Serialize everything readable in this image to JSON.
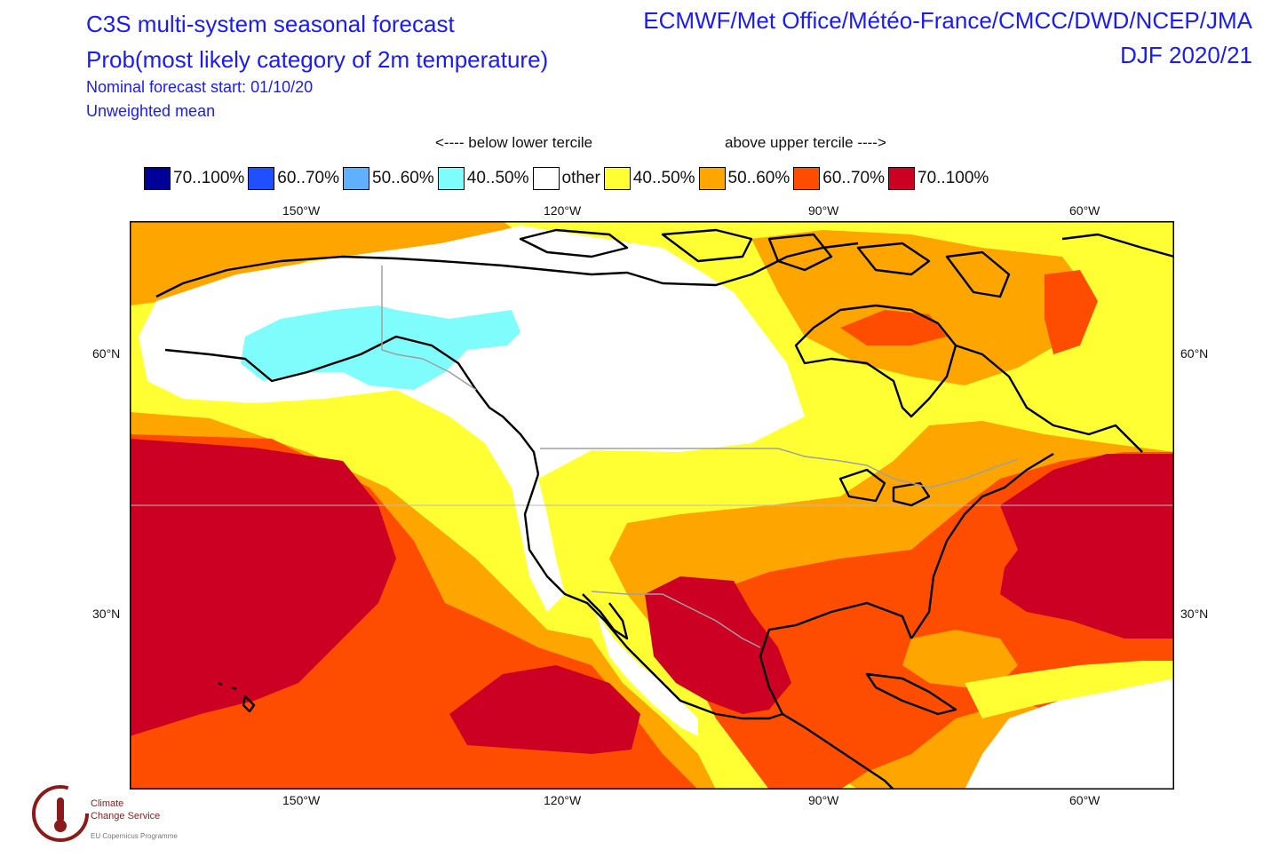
{
  "header": {
    "title_line1": "C3S multi-system seasonal forecast",
    "title_line2": "Prob(most likely category of 2m temperature)",
    "forecast_start": "Nominal forecast start: 01/10/20",
    "mean_type": "Unweighted mean",
    "systems": "ECMWF/Met Office/Météo-France/CMCC/DWD/NCEP/JMA",
    "season": "DJF 2020/21"
  },
  "legend": {
    "below_label": "<---- below lower tercile",
    "above_label": "above upper tercile ---->",
    "items": [
      {
        "label": "70..100%",
        "color": "#000099"
      },
      {
        "label": "60..70%",
        "color": "#1f4fff"
      },
      {
        "label": "50..60%",
        "color": "#5fb0ff"
      },
      {
        "label": "40..50%",
        "color": "#7ffcfc"
      },
      {
        "label": "other",
        "color": "#ffffff"
      },
      {
        "label": "40..50%",
        "color": "#ffff33"
      },
      {
        "label": "50..60%",
        "color": "#ffa500"
      },
      {
        "label": "60..70%",
        "color": "#ff4d00"
      },
      {
        "label": "70..100%",
        "color": "#cc0022"
      }
    ]
  },
  "axes": {
    "lon_labels": [
      "150°W",
      "120°W",
      "90°W",
      "60°W"
    ],
    "lat_labels": [
      "60°N",
      "30°N"
    ]
  },
  "logo": {
    "line1": "Climate",
    "line2": "Change Service",
    "line3": "EU Copernicus Programme"
  }
}
